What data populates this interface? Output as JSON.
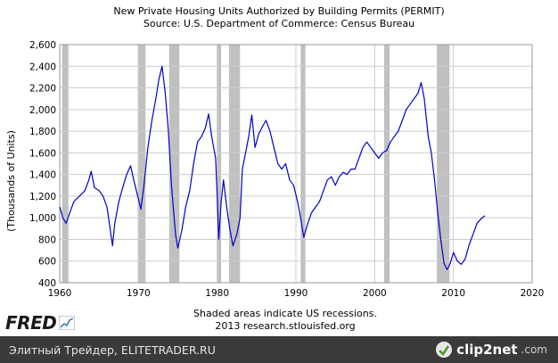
{
  "chart_data": {
    "type": "line",
    "title": "New Private Housing Units Authorized by Building Permits (PERMIT)",
    "subtitle": "Source: U.S. Department of Commerce: Census Bureau",
    "ylabel": "(Thousands of Units)",
    "xlabel": "",
    "xlim": [
      1960,
      2020
    ],
    "ylim": [
      400,
      2600
    ],
    "x_ticks": [
      "1960",
      "1970",
      "1980",
      "1990",
      "2000",
      "2010",
      "2020"
    ],
    "y_ticks": [
      "400",
      "600",
      "800",
      "1,000",
      "1,200",
      "1,400",
      "1,600",
      "1,800",
      "2,000",
      "2,200",
      "2,400",
      "2,600"
    ],
    "grid": true,
    "line_color": "#0000cc",
    "recession_color": "#c0c0c0",
    "recessions": [
      [
        1960.3,
        1961.1
      ],
      [
        1969.9,
        1970.9
      ],
      [
        1973.9,
        1975.2
      ],
      [
        1980.0,
        1980.5
      ],
      [
        1981.5,
        1982.9
      ],
      [
        1990.6,
        1991.2
      ],
      [
        2001.2,
        2001.9
      ],
      [
        2007.9,
        2009.5
      ]
    ],
    "series": [
      {
        "points": [
          [
            1960.0,
            1100
          ],
          [
            1960.4,
            1000
          ],
          [
            1960.8,
            950
          ],
          [
            1961.3,
            1050
          ],
          [
            1961.8,
            1150
          ],
          [
            1962.5,
            1200
          ],
          [
            1963.2,
            1250
          ],
          [
            1963.7,
            1350
          ],
          [
            1964.0,
            1430
          ],
          [
            1964.4,
            1280
          ],
          [
            1965.0,
            1250
          ],
          [
            1965.5,
            1200
          ],
          [
            1966.0,
            1100
          ],
          [
            1966.4,
            900
          ],
          [
            1966.7,
            740
          ],
          [
            1967.0,
            950
          ],
          [
            1967.5,
            1150
          ],
          [
            1968.0,
            1280
          ],
          [
            1968.5,
            1400
          ],
          [
            1969.0,
            1480
          ],
          [
            1969.4,
            1350
          ],
          [
            1969.9,
            1200
          ],
          [
            1970.3,
            1080
          ],
          [
            1970.7,
            1300
          ],
          [
            1971.2,
            1650
          ],
          [
            1971.7,
            1900
          ],
          [
            1972.2,
            2100
          ],
          [
            1972.6,
            2280
          ],
          [
            1973.0,
            2400
          ],
          [
            1973.4,
            2150
          ],
          [
            1973.8,
            1800
          ],
          [
            1974.2,
            1300
          ],
          [
            1974.7,
            850
          ],
          [
            1975.0,
            720
          ],
          [
            1975.5,
            880
          ],
          [
            1976.0,
            1100
          ],
          [
            1976.5,
            1250
          ],
          [
            1977.0,
            1500
          ],
          [
            1977.5,
            1700
          ],
          [
            1978.0,
            1750
          ],
          [
            1978.5,
            1830
          ],
          [
            1978.9,
            1960
          ],
          [
            1979.3,
            1750
          ],
          [
            1979.8,
            1550
          ],
          [
            1980.0,
            1200
          ],
          [
            1980.2,
            800
          ],
          [
            1980.5,
            1150
          ],
          [
            1980.8,
            1350
          ],
          [
            1981.2,
            1100
          ],
          [
            1981.6,
            900
          ],
          [
            1982.0,
            740
          ],
          [
            1982.5,
            850
          ],
          [
            1982.9,
            1000
          ],
          [
            1983.2,
            1450
          ],
          [
            1983.6,
            1600
          ],
          [
            1984.0,
            1750
          ],
          [
            1984.4,
            1950
          ],
          [
            1984.8,
            1650
          ],
          [
            1985.3,
            1780
          ],
          [
            1985.8,
            1850
          ],
          [
            1986.2,
            1900
          ],
          [
            1986.7,
            1800
          ],
          [
            1987.2,
            1650
          ],
          [
            1987.7,
            1500
          ],
          [
            1988.2,
            1450
          ],
          [
            1988.7,
            1500
          ],
          [
            1989.2,
            1350
          ],
          [
            1989.7,
            1300
          ],
          [
            1990.2,
            1150
          ],
          [
            1990.6,
            1000
          ],
          [
            1991.0,
            820
          ],
          [
            1991.5,
            950
          ],
          [
            1992.0,
            1050
          ],
          [
            1992.5,
            1100
          ],
          [
            1993.0,
            1150
          ],
          [
            1993.5,
            1250
          ],
          [
            1994.0,
            1350
          ],
          [
            1994.5,
            1380
          ],
          [
            1995.0,
            1300
          ],
          [
            1995.5,
            1380
          ],
          [
            1996.0,
            1420
          ],
          [
            1996.5,
            1400
          ],
          [
            1997.0,
            1450
          ],
          [
            1997.5,
            1450
          ],
          [
            1998.0,
            1550
          ],
          [
            1998.5,
            1650
          ],
          [
            1999.0,
            1700
          ],
          [
            1999.5,
            1650
          ],
          [
            2000.0,
            1600
          ],
          [
            2000.5,
            1550
          ],
          [
            2001.0,
            1600
          ],
          [
            2001.5,
            1620
          ],
          [
            2002.0,
            1700
          ],
          [
            2002.5,
            1750
          ],
          [
            2003.0,
            1800
          ],
          [
            2003.5,
            1900
          ],
          [
            2004.0,
            2000
          ],
          [
            2004.5,
            2050
          ],
          [
            2005.0,
            2100
          ],
          [
            2005.5,
            2150
          ],
          [
            2005.9,
            2250
          ],
          [
            2006.3,
            2100
          ],
          [
            2006.8,
            1750
          ],
          [
            2007.2,
            1600
          ],
          [
            2007.6,
            1350
          ],
          [
            2008.0,
            1050
          ],
          [
            2008.4,
            800
          ],
          [
            2008.8,
            580
          ],
          [
            2009.2,
            520
          ],
          [
            2009.6,
            580
          ],
          [
            2010.0,
            680
          ],
          [
            2010.5,
            600
          ],
          [
            2011.0,
            570
          ],
          [
            2011.5,
            620
          ],
          [
            2012.0,
            750
          ],
          [
            2012.5,
            850
          ],
          [
            2013.0,
            950
          ],
          [
            2013.5,
            990
          ],
          [
            2014.0,
            1020
          ]
        ]
      }
    ]
  },
  "notes": {
    "line1": "Shaded areas indicate US recessions.",
    "line2": "2013 research.stlouisfed.org"
  },
  "branding": {
    "fred_logo_text": "FRED",
    "footer_text": "Элитный Трейдер, ELITETRADER.RU",
    "clip_brand": "clip2net",
    "clip_tld": ".com"
  }
}
